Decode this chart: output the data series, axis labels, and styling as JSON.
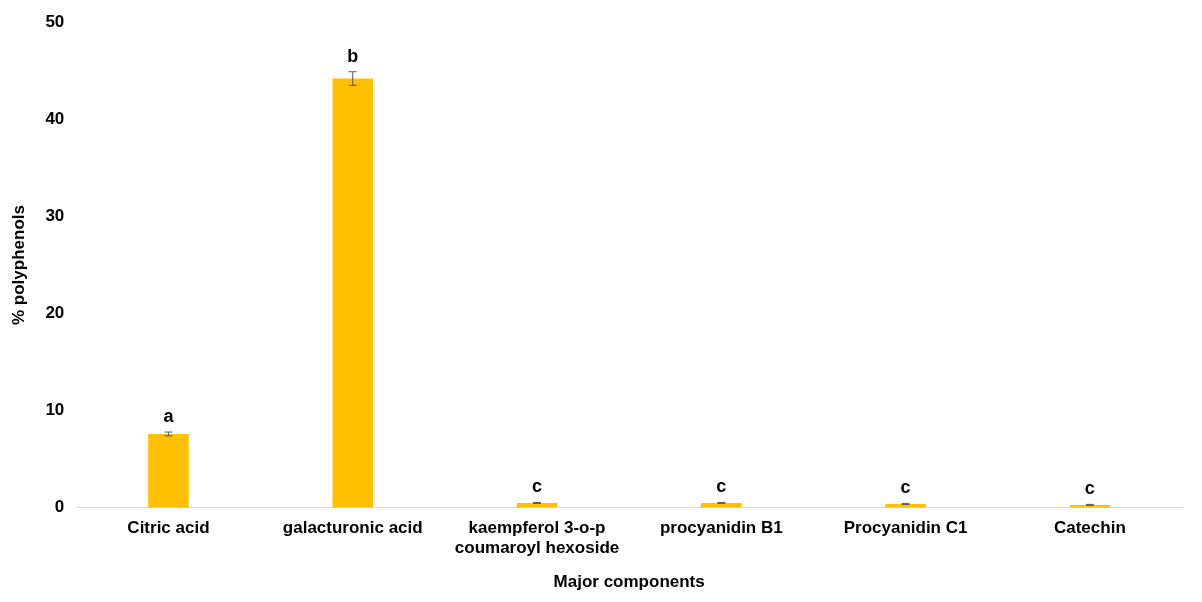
{
  "chart_data": {
    "type": "bar",
    "xlabel": "Major components",
    "ylabel": "% polyphenols",
    "categories": [
      "Citric acid",
      "galacturonic acid",
      "kaempferol 3-o-p coumaroyl hexoside",
      "procyanidin B1",
      "Procyanidin C1",
      "Catechin"
    ],
    "values": [
      7.6,
      44.2,
      0.5,
      0.5,
      0.4,
      0.3
    ],
    "errors": [
      0.2,
      0.7,
      0.05,
      0.05,
      0.05,
      0.05
    ],
    "color": "#ffc000",
    "ylim": [
      0,
      50
    ],
    "yticks": [
      0,
      10,
      20,
      30,
      40,
      50
    ],
    "grid": false,
    "legend": false,
    "annotations": [
      {
        "text": "a",
        "x": "Citric acid",
        "y": 7.8
      },
      {
        "text": "b",
        "x": "galacturonic acid",
        "y": 44.9
      },
      {
        "text": "c",
        "x": "kaempferol 3-o-p coumaroyl hexoside",
        "y": 0.55
      },
      {
        "text": "c",
        "x": "procyanidin B1",
        "y": 0.55
      },
      {
        "text": "c",
        "x": "Procyanidin C1",
        "y": 0.45
      },
      {
        "text": "c",
        "x": "Catechin",
        "y": 0.35
      }
    ]
  }
}
